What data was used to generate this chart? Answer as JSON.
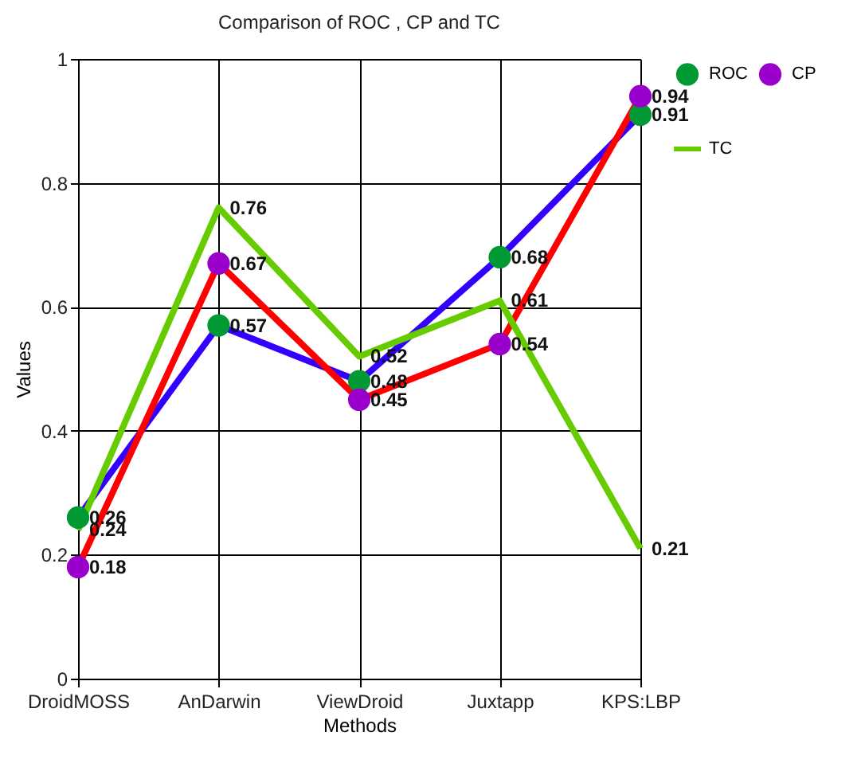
{
  "chart_data": {
    "type": "line",
    "title": "Comparison of ROC , CP and TC",
    "xlabel": "Methods",
    "ylabel": "Values",
    "categories": [
      "DroidMOSS",
      "AnDarwin",
      "ViewDroid",
      "Juxtapp",
      "KPS:LBP"
    ],
    "series": [
      {
        "name": "ROC",
        "color": "#3300ff",
        "colors": [
          "#009933",
          "#009933",
          "#009933",
          "#009933",
          "#009933"
        ],
        "marker": "circle",
        "values": [
          0.26,
          0.57,
          0.48,
          0.68,
          0.91
        ]
      },
      {
        "name": "CP",
        "color": "#ff0000",
        "colors": [
          "#9900cc",
          "#9900cc",
          "#9900cc",
          "#9900cc",
          "#9900cc"
        ],
        "marker": "circle",
        "values": [
          0.18,
          0.67,
          0.45,
          0.54,
          0.94
        ]
      },
      {
        "name": "TC",
        "color": "#66cc00",
        "marker": "none",
        "values": [
          0.24,
          0.76,
          0.52,
          0.61,
          0.21
        ]
      }
    ],
    "ylim": [
      0,
      1
    ],
    "yticks": [
      {
        "value": 0,
        "label": "0"
      },
      0.2,
      0.4,
      0.6,
      0.8,
      {
        "value": 1,
        "label": "1"
      }
    ],
    "grid": true,
    "legend": "right",
    "data_labels": true
  }
}
